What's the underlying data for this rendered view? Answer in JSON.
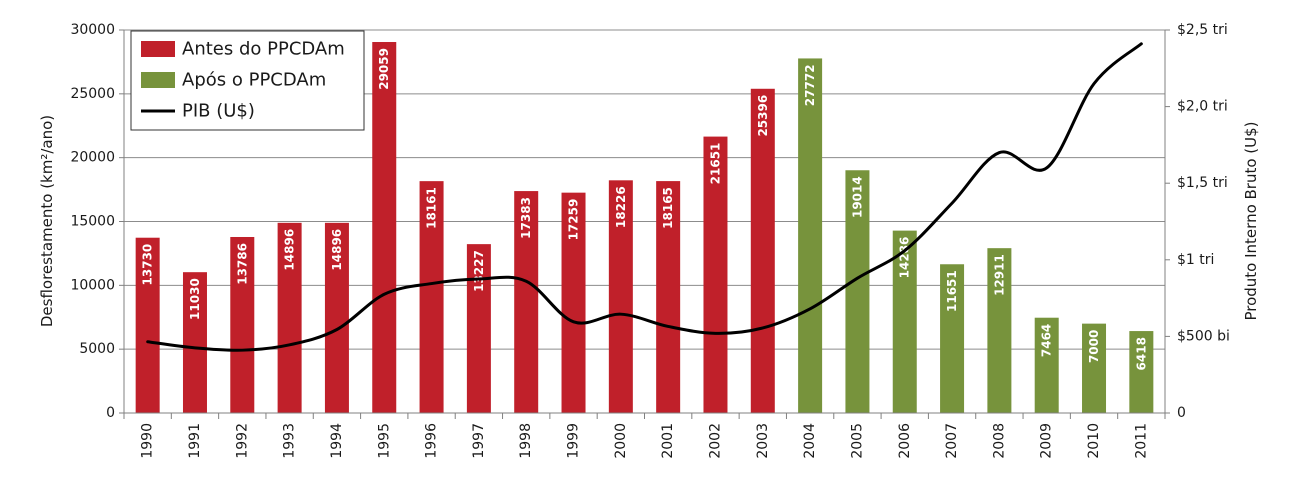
{
  "chart_data": {
    "type": "bar",
    "categories": [
      "1990",
      "1991",
      "1992",
      "1993",
      "1994",
      "1995",
      "1996",
      "1997",
      "1998",
      "1999",
      "2000",
      "2001",
      "2002",
      "2003",
      "2004",
      "2005",
      "2006",
      "2007",
      "2008",
      "2009",
      "2010",
      "2011"
    ],
    "series": [
      {
        "name": "Antes do PPCDAm",
        "type": "bar",
        "color": "#C0202A",
        "values": [
          13730,
          11030,
          13786,
          14896,
          14896,
          29059,
          18161,
          13227,
          17383,
          17259,
          18226,
          18165,
          21651,
          25396,
          null,
          null,
          null,
          null,
          null,
          null,
          null,
          null
        ]
      },
      {
        "name": "Após o PPCDAm",
        "type": "bar",
        "color": "#77933C",
        "values": [
          null,
          null,
          null,
          null,
          null,
          null,
          null,
          null,
          null,
          null,
          null,
          null,
          null,
          null,
          27772,
          19014,
          14286,
          11651,
          12911,
          7464,
          7000,
          6418
        ]
      },
      {
        "name": "PIB (U$)",
        "type": "line",
        "axis": "right",
        "color": "#000000",
        "unit": "bilhões US$",
        "values": [
          465,
          425,
          410,
          445,
          545,
          775,
          845,
          875,
          860,
          595,
          645,
          565,
          520,
          555,
          680,
          880,
          1060,
          1370,
          1700,
          1600,
          2150,
          2410
        ]
      }
    ],
    "ylabel": "Desflorestamento (km²/ano)",
    "ylim": [
      0,
      30000
    ],
    "yticks": [
      0,
      5000,
      10000,
      15000,
      20000,
      25000,
      30000
    ],
    "y2label": "Produto Interno Bruto (U$)",
    "y2lim": [
      0,
      2500
    ],
    "y2ticks": [
      {
        "value": 0,
        "label": "0"
      },
      {
        "value": 500,
        "label": "$500 bi"
      },
      {
        "value": 1000,
        "label": "$1 tri"
      },
      {
        "value": 1500,
        "label": "$1,5 tri"
      },
      {
        "value": 2000,
        "label": "$2,0 tri"
      },
      {
        "value": 2500,
        "label": "$2,5 tri"
      }
    ],
    "grid": true,
    "legend": "top-left",
    "legend_items": [
      {
        "label": "Antes do PPCDAm",
        "kind": "bar",
        "color": "#C0202A"
      },
      {
        "label": "Após o PPCDAm",
        "kind": "bar",
        "color": "#77933C"
      },
      {
        "label": "PIB (U$)",
        "kind": "line",
        "color": "#000000"
      }
    ]
  }
}
